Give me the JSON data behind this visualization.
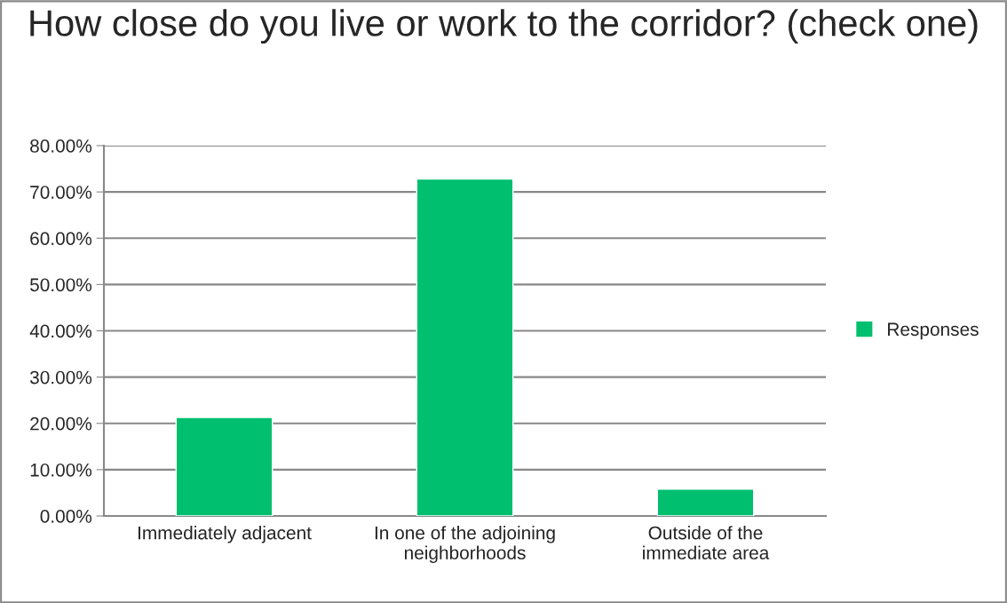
{
  "chart_data": {
    "type": "bar",
    "title": "How close do you live or work to the corridor? (check one)",
    "categories": [
      "Immediately adjacent",
      "In one of the adjoining\nneighborhoods",
      "Outside of the\nimmediate area"
    ],
    "series": [
      {
        "name": "Responses",
        "color": "#00bf6f",
        "values": [
          21.3,
          72.8,
          5.8
        ]
      }
    ],
    "ylim": [
      0,
      80
    ],
    "yticks": [
      {
        "value": 0,
        "label": "0.00%"
      },
      {
        "value": 10,
        "label": "10.00%"
      },
      {
        "value": 20,
        "label": "20.00%"
      },
      {
        "value": 30,
        "label": "30.00%"
      },
      {
        "value": 40,
        "label": "40.00%"
      },
      {
        "value": 50,
        "label": "50.00%"
      },
      {
        "value": 60,
        "label": "60.00%"
      },
      {
        "value": 70,
        "label": "70.00%"
      },
      {
        "value": 80,
        "label": "80.00%"
      }
    ],
    "grid": "y",
    "legend": "right"
  }
}
